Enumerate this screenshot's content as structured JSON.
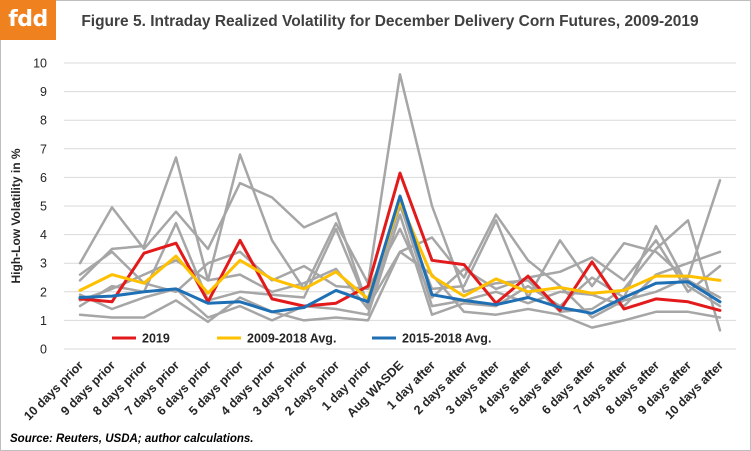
{
  "logo": "fdd",
  "title": "Figure 5. Intraday Realized Volatility for December Delivery Corn Futures, 2009-2019",
  "source": "Source: Reuters, USDA; author calculations.",
  "chart_data": {
    "type": "line",
    "title": "Figure 5. Intraday Realized Volatility for December Delivery Corn Futures, 2009-2019",
    "ylabel": "High-Low Volatility in %",
    "xlabel": "",
    "ylim": [
      0,
      10
    ],
    "yticks": [
      0,
      1,
      2,
      3,
      4,
      5,
      6,
      7,
      8,
      9,
      10
    ],
    "grid": "horizontal",
    "legend_position": "bottom-left",
    "categories": [
      "10 days prior",
      "9 days prior",
      "8 days prior",
      "7 days prior",
      "6 days prior",
      "5 days prior",
      "4 days prior",
      "3 days prior",
      "2 days prior",
      "1 day prior",
      "Aug WASDE",
      "1 day after",
      "2 days after",
      "3 days after",
      "4 days after",
      "5 days after",
      "6 days after",
      "7 days after",
      "8 days after",
      "9 days after",
      "10 days after"
    ],
    "series": [
      {
        "name": "",
        "color": "#a6a6a6",
        "width": 2.5,
        "values": [
          2.4,
          3.5,
          3.6,
          6.7,
          2.4,
          6.8,
          3.8,
          2.1,
          4.4,
          2.3,
          9.6,
          5.0,
          2.0,
          2.3,
          2.4,
          1.3,
          1.4,
          2.1,
          3.5,
          4.5,
          0.65
        ]
      },
      {
        "name": "",
        "color": "#a6a6a6",
        "width": 2.5,
        "values": [
          3.0,
          4.95,
          3.5,
          4.8,
          3.5,
          5.8,
          5.3,
          4.25,
          4.75,
          1.5,
          3.4,
          3.9,
          2.5,
          4.7,
          3.1,
          2.2,
          1.1,
          1.7,
          2.0,
          2.5,
          5.9
        ]
      },
      {
        "name": "",
        "color": "#a6a6a6",
        "width": 2.5,
        "values": [
          1.5,
          2.2,
          2.0,
          4.4,
          1.7,
          2.0,
          1.9,
          1.8,
          4.2,
          1.5,
          5.0,
          2.1,
          2.2,
          4.5,
          1.8,
          3.8,
          2.2,
          3.7,
          3.4,
          2.4,
          1.8
        ]
      },
      {
        "name": "",
        "color": "#a6a6a6",
        "width": 2.5,
        "values": [
          1.2,
          1.1,
          1.1,
          1.7,
          0.95,
          1.8,
          1.3,
          1.0,
          1.1,
          1.0,
          3.4,
          2.6,
          1.3,
          1.2,
          1.4,
          1.2,
          0.75,
          1.0,
          1.3,
          1.3,
          1.1
        ]
      },
      {
        "name": "",
        "color": "#a6a6a6",
        "width": 2.5,
        "values": [
          1.9,
          1.4,
          1.8,
          2.1,
          1.1,
          1.5,
          1.0,
          1.5,
          1.4,
          1.2,
          4.7,
          1.2,
          1.6,
          1.5,
          2.2,
          1.5,
          2.5,
          1.8,
          4.3,
          2.2,
          1.5
        ]
      },
      {
        "name": "",
        "color": "#a6a6a6",
        "width": 2.5,
        "values": [
          2.6,
          3.4,
          2.3,
          2.0,
          3.0,
          3.4,
          2.4,
          2.9,
          2.2,
          2.1,
          4.2,
          1.8,
          2.8,
          2.1,
          2.5,
          2.7,
          3.2,
          2.4,
          3.8,
          2.0,
          2.9
        ]
      },
      {
        "name": "",
        "color": "#a6a6a6",
        "width": 2.5,
        "values": [
          1.7,
          2.1,
          2.6,
          3.1,
          2.4,
          2.6,
          2.0,
          2.3,
          2.8,
          1.4,
          5.1,
          1.5,
          1.7,
          2.0,
          1.6,
          2.0,
          1.9,
          1.5,
          2.6,
          3.0,
          3.4
        ]
      },
      {
        "name": "2019",
        "color": "#e31a1c",
        "width": 3,
        "values": [
          1.75,
          1.65,
          3.35,
          3.7,
          1.65,
          3.8,
          1.75,
          1.5,
          1.6,
          2.2,
          6.15,
          3.1,
          2.95,
          1.6,
          2.55,
          1.35,
          3.05,
          1.4,
          1.75,
          1.65,
          1.35
        ]
      },
      {
        "name": "2009-2018 Avg.",
        "color": "#ffc000",
        "width": 3,
        "values": [
          2.05,
          2.6,
          2.3,
          3.25,
          1.95,
          3.1,
          2.45,
          2.1,
          2.7,
          1.75,
          5.15,
          2.55,
          1.85,
          2.45,
          2.0,
          2.15,
          1.95,
          2.05,
          2.55,
          2.55,
          2.4
        ]
      },
      {
        "name": "2015-2018 Avg.",
        "color": "#1f6fb4",
        "width": 3,
        "values": [
          1.8,
          1.85,
          2.0,
          2.1,
          1.6,
          1.65,
          1.3,
          1.45,
          2.05,
          1.65,
          5.35,
          1.9,
          1.7,
          1.55,
          1.8,
          1.45,
          1.25,
          1.8,
          2.3,
          2.35,
          1.65
        ]
      }
    ]
  }
}
